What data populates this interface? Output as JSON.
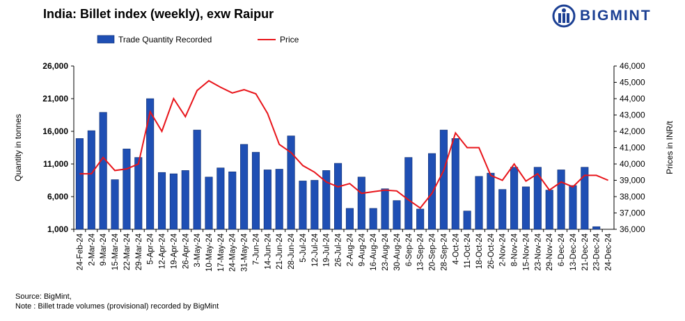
{
  "title": "India: Billet index (weekly), exw Raipur",
  "logo": {
    "text": "BIGMINT",
    "icon": "bigmint-logo-icon",
    "color": "#1b3f93"
  },
  "footer": {
    "source": "Source: BigMint,",
    "note": "Note : Billet trade volumes (provisional) recorded by BigMint"
  },
  "chart_data": {
    "type": "bar",
    "categories": [
      "24-Feb-24",
      "2-Mar-24",
      "9-Mar-24",
      "15-Mar-24",
      "22-Mar-24",
      "29-Mar-24",
      "5-Apr-24",
      "12-Apr-24",
      "19-Apr-24",
      "26-Apr-24",
      "3-May-24",
      "10-May-24",
      "17-May-24",
      "24-May-24",
      "31-May-24",
      "7-Jun-24",
      "14-Jun-24",
      "21-Jun-24",
      "28-Jun-24",
      "5-Jul-24",
      "12-Jul-24",
      "19-Jul-24",
      "26-Jul-24",
      "2-Aug-24",
      "9-Aug-24",
      "16-Aug-24",
      "23-Aug-24",
      "30-Aug-24",
      "6-Sep-24",
      "13-Sep-24",
      "20-Sep-24",
      "28-Sep-24",
      "4-Oct-24",
      "11-Oct-24",
      "18-Oct-24",
      "26-Oct-24",
      "2-Nov-24",
      "8-Nov-24",
      "15-Nov-24",
      "23-Nov-24",
      "29-Nov-24",
      "6-Dec-24",
      "13-Dec-24",
      "21-Dec-24",
      "23-Dec-24",
      "24-Dec-24"
    ],
    "series": [
      {
        "name": "Trade Quantity Recorded",
        "type": "bar",
        "axis": "left",
        "color": "#1f4fb4",
        "values": [
          14900,
          16100,
          18900,
          8600,
          13300,
          12000,
          21000,
          9700,
          9500,
          10000,
          16200,
          9000,
          10400,
          9800,
          14000,
          12800,
          10100,
          10200,
          15300,
          8400,
          8500,
          10000,
          11100,
          4200,
          9000,
          4200,
          7200,
          5400,
          12000,
          4100,
          12600,
          16200,
          14900,
          3800,
          9100,
          9600,
          7100,
          10500,
          7500,
          10500,
          7000,
          10100,
          7700,
          10500,
          1400,
          null
        ]
      },
      {
        "name": "Price",
        "type": "line",
        "axis": "right",
        "color": "#e8141a",
        "values": [
          39400,
          39400,
          40400,
          39600,
          39700,
          40000,
          43200,
          42000,
          44000,
          42900,
          44500,
          45100,
          44700,
          44350,
          44550,
          44300,
          43100,
          41200,
          40700,
          39900,
          39500,
          38900,
          38600,
          38800,
          38200,
          38300,
          38400,
          38350,
          37800,
          37300,
          38200,
          39600,
          41900,
          41000,
          41000,
          39300,
          39000,
          40000,
          38950,
          39400,
          38400,
          38900,
          38600,
          39300,
          39300,
          39000
        ]
      }
    ],
    "ylabel": "Quantity in tonnes",
    "y2label": "Prices in INR/t",
    "ylim": [
      1000,
      26000
    ],
    "yticks": [
      "1,000",
      "6,000",
      "11,000",
      "16,000",
      "21,000",
      "26,000"
    ],
    "y2lim": [
      36000,
      46000
    ],
    "y2ticks": [
      "36,000",
      "37,000",
      "38,000",
      "39,000",
      "40,000",
      "41,000",
      "42,000",
      "43,000",
      "44,000",
      "45,000",
      "46,000"
    ],
    "legend": {
      "placement": "top",
      "entries": [
        "Trade Quantity Recorded",
        "Price"
      ]
    },
    "grid": false
  }
}
